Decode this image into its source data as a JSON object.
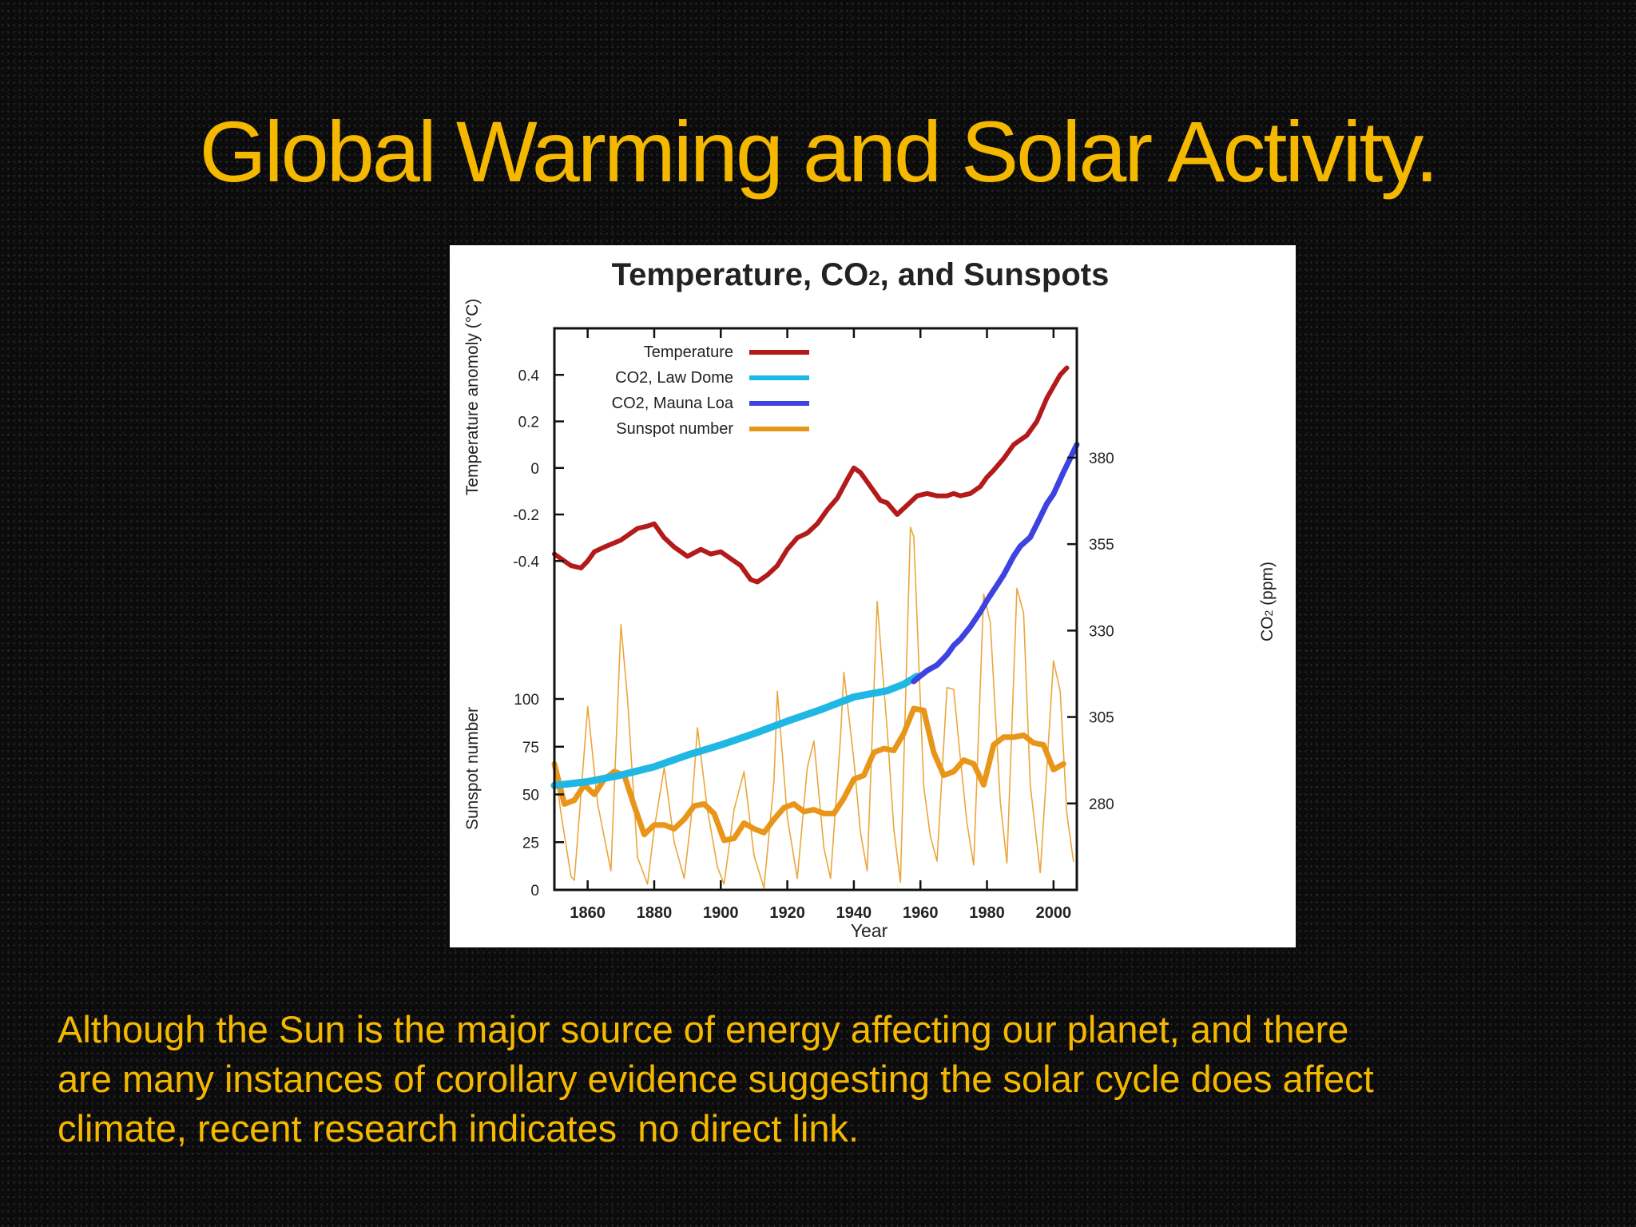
{
  "slide": {
    "title": "Global Warming and Solar Activity.",
    "caption_lines": [
      "Although the Sun is the major source of energy affecting our planet, and there",
      "are many instances of corollary evidence suggesting the solar cycle does affect",
      "climate, recent research indicates  no direct link."
    ]
  },
  "colors": {
    "title_text": "#f5b800",
    "temperature": "#b31b1b",
    "co2_law_dome": "#1fb7e3",
    "co2_mauna_loa": "#3d43e0",
    "sunspot": "#e8961a"
  },
  "chart_data": {
    "type": "line",
    "title": "Temperature, CO",
    "title_sub": "2",
    "title_end": ", and Sunspots",
    "xlabel": "Year",
    "xlim": [
      1850,
      2007
    ],
    "xticks": [
      1860,
      1880,
      1900,
      1920,
      1940,
      1960,
      1980,
      2000
    ],
    "temperature_axis": {
      "label": "Temperature anomoly (°C)",
      "ylim": [
        -0.55,
        0.6
      ],
      "ticks": [
        0.4,
        0.2,
        0,
        -0.2,
        -0.4
      ],
      "tick_labels": [
        "0.4",
        "0.2",
        "0",
        "-0.2",
        "-0.4"
      ]
    },
    "sunspot_axis": {
      "label": "Sunspot number",
      "ylim": [
        0,
        100
      ],
      "ticks": [
        100,
        75,
        50,
        25,
        0
      ]
    },
    "co2_axis": {
      "label": "CO",
      "label_sub": "2",
      "label_end": " (ppm)",
      "ylim": [
        255,
        392
      ],
      "ticks": [
        380,
        355,
        330,
        305,
        280
      ]
    },
    "legend": {
      "position": "top-left",
      "entries": [
        "Temperature",
        "CO2, Law Dome",
        "CO2, Mauna Loa",
        "Sunspot number"
      ]
    },
    "series": [
      {
        "name": "Temperature",
        "axis": "temperature",
        "x": [
          1850,
          1852,
          1855,
          1858,
          1860,
          1862,
          1865,
          1870,
          1875,
          1878,
          1880,
          1883,
          1886,
          1890,
          1894,
          1897,
          1900,
          1903,
          1906,
          1909,
          1911,
          1914,
          1917,
          1920,
          1923,
          1926,
          1929,
          1932,
          1935,
          1938,
          1940,
          1942,
          1944,
          1946,
          1948,
          1950,
          1953,
          1956,
          1959,
          1962,
          1965,
          1968,
          1970,
          1972,
          1975,
          1978,
          1980,
          1982,
          1985,
          1988,
          1990,
          1992,
          1995,
          1998,
          2000,
          2002,
          2004
        ],
        "y": [
          -0.37,
          -0.39,
          -0.42,
          -0.43,
          -0.4,
          -0.36,
          -0.34,
          -0.31,
          -0.26,
          -0.25,
          -0.24,
          -0.3,
          -0.34,
          -0.38,
          -0.35,
          -0.37,
          -0.36,
          -0.39,
          -0.42,
          -0.48,
          -0.49,
          -0.46,
          -0.42,
          -0.35,
          -0.3,
          -0.28,
          -0.24,
          -0.18,
          -0.13,
          -0.05,
          0.0,
          -0.02,
          -0.06,
          -0.1,
          -0.14,
          -0.15,
          -0.2,
          -0.16,
          -0.12,
          -0.11,
          -0.12,
          -0.12,
          -0.11,
          -0.12,
          -0.11,
          -0.08,
          -0.04,
          -0.01,
          0.04,
          0.1,
          0.12,
          0.14,
          0.2,
          0.3,
          0.35,
          0.4,
          0.43
        ]
      },
      {
        "name": "CO2, Law Dome",
        "axis": "co2",
        "x": [
          1850,
          1860,
          1870,
          1880,
          1890,
          1900,
          1910,
          1920,
          1930,
          1940,
          1950,
          1955,
          1959
        ],
        "y": [
          285.2,
          286.3,
          288.2,
          290.6,
          294.0,
          296.9,
          300.2,
          303.8,
          307.1,
          310.8,
          312.6,
          314.5,
          316.8
        ]
      },
      {
        "name": "CO2, Mauna Loa",
        "axis": "co2",
        "x": [
          1958,
          1960,
          1962,
          1965,
          1968,
          1970,
          1972,
          1975,
          1978,
          1980,
          1983,
          1985,
          1988,
          1990,
          1993,
          1995,
          1998,
          2000,
          2003,
          2005,
          2007
        ],
        "y": [
          315.3,
          316.9,
          318.4,
          320.0,
          323.0,
          325.7,
          327.5,
          331.1,
          335.4,
          338.7,
          343.1,
          346.1,
          351.5,
          354.4,
          357.0,
          360.8,
          366.7,
          369.5,
          375.8,
          379.8,
          383.8
        ]
      },
      {
        "name": "Sunspot number",
        "axis": "sunspot",
        "x": [
          1850,
          1853,
          1856,
          1859,
          1862,
          1865,
          1868,
          1871,
          1874,
          1877,
          1880,
          1883,
          1886,
          1889,
          1892,
          1895,
          1898,
          1901,
          1904,
          1907,
          1910,
          1913,
          1916,
          1919,
          1922,
          1925,
          1928,
          1931,
          1934,
          1937,
          1940,
          1943,
          1946,
          1949,
          1952,
          1955,
          1958,
          1961,
          1964,
          1967,
          1970,
          1973,
          1976,
          1979,
          1982,
          1985,
          1988,
          1991,
          1994,
          1997,
          2000,
          2003
        ],
        "y": [
          66,
          45,
          47,
          55,
          50,
          58,
          62,
          60,
          44,
          29,
          34,
          34,
          32,
          37,
          44,
          45,
          40,
          26,
          27,
          35,
          32,
          30,
          37,
          43,
          45,
          41,
          42,
          40,
          40,
          48,
          58,
          60,
          72,
          74,
          73,
          82,
          95,
          94,
          72,
          60,
          62,
          68,
          66,
          55,
          76,
          80,
          80,
          81,
          77,
          76,
          63,
          66
        ]
      },
      {
        "name": "Sunspot number (annual)",
        "axis": "sunspot",
        "x": [
          1850,
          1852,
          1855,
          1856,
          1860,
          1863,
          1867,
          1870,
          1872,
          1875,
          1878,
          1880,
          1883,
          1886,
          1889,
          1891,
          1893,
          1896,
          1899,
          1901,
          1904,
          1907,
          1910,
          1913,
          1916,
          1917,
          1920,
          1923,
          1926,
          1928,
          1931,
          1933,
          1936,
          1937,
          1940,
          1942,
          1944,
          1947,
          1950,
          1952,
          1954,
          1957,
          1958,
          1961,
          1963,
          1965,
          1968,
          1970,
          1972,
          1974,
          1976,
          1979,
          1981,
          1984,
          1986,
          1989,
          1991,
          1993,
          1996,
          1998,
          2000,
          2002,
          2004,
          2006
        ],
        "y": [
          66,
          40,
          7,
          5,
          96,
          45,
          10,
          139,
          100,
          17,
          3,
          32,
          64,
          25,
          6,
          36,
          85,
          42,
          12,
          3,
          42,
          62,
          18,
          1,
          57,
          104,
          38,
          6,
          64,
          78,
          22,
          6,
          80,
          114,
          68,
          30,
          10,
          151,
          84,
          32,
          4,
          190,
          185,
          54,
          28,
          15,
          106,
          105,
          69,
          35,
          13,
          155,
          140,
          46,
          14,
          158,
          145,
          55,
          9,
          64,
          120,
          104,
          40,
          15
        ]
      }
    ]
  }
}
